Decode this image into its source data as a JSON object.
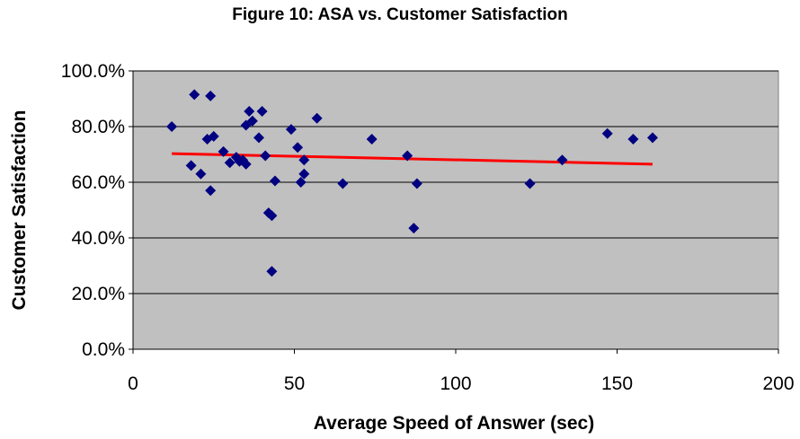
{
  "chart_data": {
    "type": "scatter",
    "title": "Figure 10: ASA vs. Customer Satisfaction",
    "xlabel": "Average Speed of Answer (sec)",
    "ylabel": "Customer Satisfaction",
    "xlim": [
      0,
      200
    ],
    "ylim": [
      0,
      1
    ],
    "x_ticks": [
      0,
      50,
      100,
      150,
      200
    ],
    "x_tick_labels": [
      "0",
      "50",
      "100",
      "150",
      "200"
    ],
    "y_ticks": [
      0,
      0.2,
      0.4,
      0.6,
      0.8,
      1.0
    ],
    "y_tick_labels": [
      "0.0%",
      "20.0%",
      "40.0%",
      "60.0%",
      "80.0%",
      "100.0%"
    ],
    "grid": "horizontal",
    "plot_background": "#c0c0c0",
    "marker_color": "#000080",
    "trendline_color": "#ff0000",
    "points": [
      {
        "x": 12,
        "y": 0.8
      },
      {
        "x": 18,
        "y": 0.66
      },
      {
        "x": 19,
        "y": 0.915
      },
      {
        "x": 21,
        "y": 0.63
      },
      {
        "x": 23,
        "y": 0.755
      },
      {
        "x": 24,
        "y": 0.57
      },
      {
        "x": 24,
        "y": 0.91
      },
      {
        "x": 25,
        "y": 0.765
      },
      {
        "x": 28,
        "y": 0.71
      },
      {
        "x": 30,
        "y": 0.67
      },
      {
        "x": 32,
        "y": 0.69
      },
      {
        "x": 33,
        "y": 0.675
      },
      {
        "x": 34,
        "y": 0.68
      },
      {
        "x": 35,
        "y": 0.665
      },
      {
        "x": 35,
        "y": 0.805
      },
      {
        "x": 36,
        "y": 0.855
      },
      {
        "x": 37,
        "y": 0.82
      },
      {
        "x": 39,
        "y": 0.76
      },
      {
        "x": 40,
        "y": 0.855
      },
      {
        "x": 41,
        "y": 0.695
      },
      {
        "x": 42,
        "y": 0.49
      },
      {
        "x": 43,
        "y": 0.28
      },
      {
        "x": 43,
        "y": 0.48
      },
      {
        "x": 44,
        "y": 0.605
      },
      {
        "x": 49,
        "y": 0.79
      },
      {
        "x": 51,
        "y": 0.725
      },
      {
        "x": 52,
        "y": 0.6
      },
      {
        "x": 53,
        "y": 0.68
      },
      {
        "x": 53,
        "y": 0.63
      },
      {
        "x": 57,
        "y": 0.83
      },
      {
        "x": 65,
        "y": 0.595
      },
      {
        "x": 74,
        "y": 0.755
      },
      {
        "x": 85,
        "y": 0.695
      },
      {
        "x": 87,
        "y": 0.435
      },
      {
        "x": 88,
        "y": 0.595
      },
      {
        "x": 123,
        "y": 0.595
      },
      {
        "x": 133,
        "y": 0.68
      },
      {
        "x": 147,
        "y": 0.775
      },
      {
        "x": 155,
        "y": 0.755
      },
      {
        "x": 161,
        "y": 0.76
      }
    ],
    "trendline": {
      "x": [
        12,
        161
      ],
      "y": [
        0.703,
        0.665
      ]
    }
  }
}
